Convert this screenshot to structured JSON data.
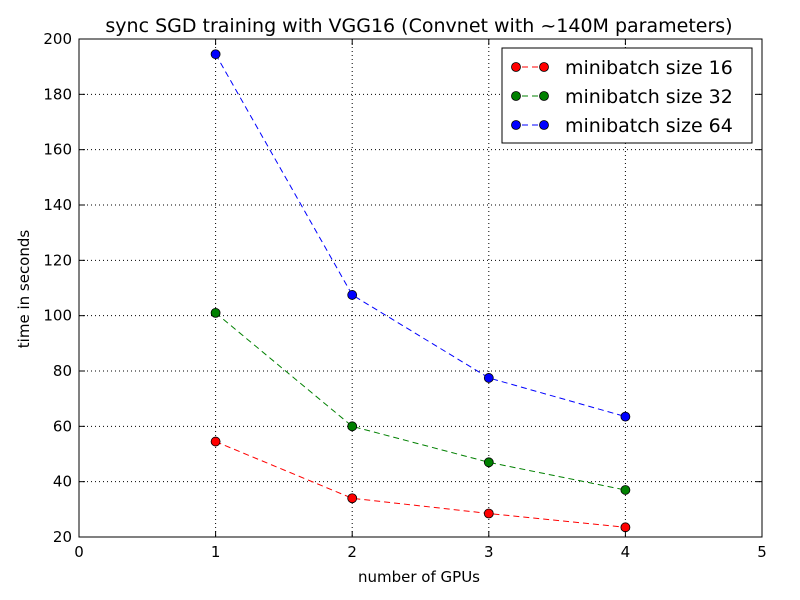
{
  "chart_data": {
    "type": "line",
    "title": "sync SGD training with VGG16 (Convnet with ~140M parameters)",
    "xlabel": "number of GPUs",
    "ylabel": "time in seconds",
    "xlim": [
      0,
      5
    ],
    "ylim": [
      20,
      200
    ],
    "x_ticks": [
      0,
      1,
      2,
      3,
      4,
      5
    ],
    "y_ticks": [
      20,
      40,
      60,
      80,
      100,
      120,
      140,
      160,
      180,
      200
    ],
    "grid": true,
    "legend_position": "top-right",
    "x": [
      1,
      2,
      3,
      4
    ],
    "series": [
      {
        "name": "minibatch size 16",
        "color": "#ff0000",
        "values": [
          54.5,
          34,
          28.5,
          23.5
        ]
      },
      {
        "name": "minibatch size 32",
        "color": "#008000",
        "values": [
          101,
          60,
          47,
          37
        ]
      },
      {
        "name": "minibatch size 64",
        "color": "#0000ff",
        "values": [
          194.5,
          107.5,
          77.5,
          63.5
        ]
      }
    ]
  }
}
